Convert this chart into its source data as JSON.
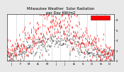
{
  "title": "Milwaukee Weather  Solar Radiation\nper Day KW/m2",
  "background_color": "#e8e8e8",
  "plot_bg_color": "#ffffff",
  "dot_color_red": "#ff0000",
  "dot_color_black": "#000000",
  "grid_color": "#999999",
  "ylim": [
    0,
    9
  ],
  "months": [
    "J",
    "F",
    "M",
    "A",
    "M",
    "J",
    "J",
    "A",
    "S",
    "O",
    "N",
    "D"
  ],
  "legend_box_color": "#ff0000",
  "title_fontsize": 3.8,
  "tick_fontsize": 2.8,
  "days_per_month": [
    31,
    28,
    31,
    30,
    31,
    30,
    31,
    31,
    30,
    31,
    30,
    31
  ],
  "monthly_means": [
    2.0,
    2.8,
    4.0,
    5.2,
    6.0,
    6.8,
    6.5,
    5.8,
    4.5,
    3.0,
    2.0,
    1.8
  ],
  "monthly_std": [
    1.3,
    1.5,
    1.8,
    2.0,
    1.8,
    1.5,
    1.5,
    1.8,
    1.8,
    1.5,
    1.2,
    1.0
  ],
  "monthly_means2": [
    1.2,
    1.5,
    2.2,
    2.8,
    3.5,
    4.0,
    3.8,
    3.4,
    2.6,
    1.8,
    1.1,
    1.0
  ],
  "monthly_std2": [
    0.8,
    0.9,
    1.0,
    1.2,
    1.2,
    1.0,
    1.0,
    1.1,
    1.1,
    0.9,
    0.7,
    0.6
  ]
}
